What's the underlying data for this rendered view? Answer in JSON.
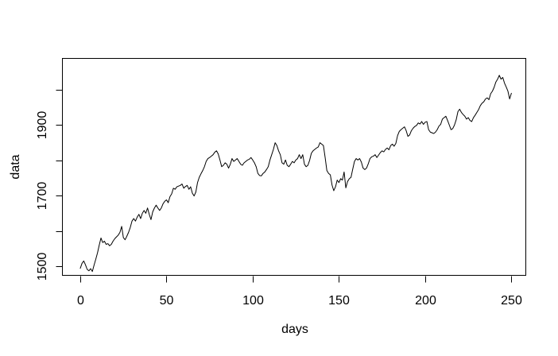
{
  "figure": {
    "background": "#ffffff",
    "foreground": "#000000"
  },
  "chart_data": {
    "type": "line",
    "title": "",
    "xlabel": "days",
    "ylabel": "data",
    "line_color": "#000000",
    "grid": false,
    "box": true,
    "xlim": [
      -10.6,
      258.6
    ],
    "ylim": [
      1473,
      2090
    ],
    "x_ticks": {
      "values": [
        0,
        50,
        100,
        150,
        200,
        250
      ],
      "labels": [
        "0",
        "50",
        "100",
        "150",
        "200",
        "250"
      ]
    },
    "y_ticks": {
      "values": [
        1500,
        1600,
        1700,
        1800,
        1900,
        2000
      ],
      "labels": [
        "1500",
        "",
        "1700",
        "",
        "1900",
        ""
      ]
    },
    "series": [
      {
        "name": "data",
        "x_start": 0,
        "x_step": 1,
        "values": [
          1494,
          1508,
          1515,
          1504,
          1491,
          1487,
          1493,
          1485,
          1503,
          1520,
          1538,
          1560,
          1580,
          1567,
          1571,
          1562,
          1564,
          1558,
          1562,
          1571,
          1578,
          1583,
          1588,
          1596,
          1613,
          1581,
          1575,
          1585,
          1596,
          1610,
          1628,
          1635,
          1628,
          1639,
          1647,
          1635,
          1650,
          1658,
          1650,
          1665,
          1647,
          1632,
          1654,
          1665,
          1673,
          1665,
          1658,
          1665,
          1677,
          1684,
          1688,
          1680,
          1697,
          1705,
          1721,
          1718,
          1725,
          1727,
          1729,
          1733,
          1721,
          1726,
          1729,
          1718,
          1725,
          1707,
          1699,
          1710,
          1737,
          1752,
          1762,
          1771,
          1782,
          1797,
          1805,
          1808,
          1812,
          1816,
          1823,
          1827,
          1818,
          1801,
          1782,
          1786,
          1793,
          1789,
          1778,
          1789,
          1805,
          1797,
          1801,
          1805,
          1797,
          1789,
          1786,
          1793,
          1797,
          1801,
          1803,
          1808,
          1801,
          1793,
          1782,
          1763,
          1757,
          1756,
          1763,
          1767,
          1774,
          1782,
          1801,
          1816,
          1831,
          1850,
          1842,
          1827,
          1816,
          1793,
          1789,
          1801,
          1786,
          1782,
          1789,
          1797,
          1793,
          1801,
          1805,
          1816,
          1805,
          1816,
          1789,
          1782,
          1786,
          1800,
          1820,
          1827,
          1831,
          1835,
          1838,
          1850,
          1846,
          1842,
          1808,
          1771,
          1763,
          1759,
          1730,
          1714,
          1725,
          1744,
          1737,
          1748,
          1744,
          1767,
          1722,
          1740,
          1748,
          1752,
          1775,
          1797,
          1805,
          1801,
          1805,
          1795,
          1778,
          1774,
          1778,
          1790,
          1805,
          1810,
          1812,
          1816,
          1808,
          1815,
          1822,
          1827,
          1824,
          1831,
          1835,
          1830,
          1842,
          1846,
          1840,
          1848,
          1870,
          1882,
          1887,
          1891,
          1895,
          1884,
          1868,
          1872,
          1884,
          1891,
          1896,
          1899,
          1906,
          1903,
          1910,
          1902,
          1908,
          1910,
          1887,
          1880,
          1878,
          1876,
          1880,
          1887,
          1897,
          1902,
          1917,
          1921,
          1925,
          1913,
          1900,
          1887,
          1890,
          1900,
          1915,
          1938,
          1945,
          1936,
          1930,
          1925,
          1917,
          1921,
          1913,
          1910,
          1921,
          1928,
          1936,
          1944,
          1955,
          1962,
          1966,
          1974,
          1977,
          1972,
          1989,
          1996,
          2007,
          2022,
          2030,
          2041,
          2030,
          2035,
          2019,
          2008,
          1996,
          1974,
          1990
        ]
      }
    ]
  }
}
